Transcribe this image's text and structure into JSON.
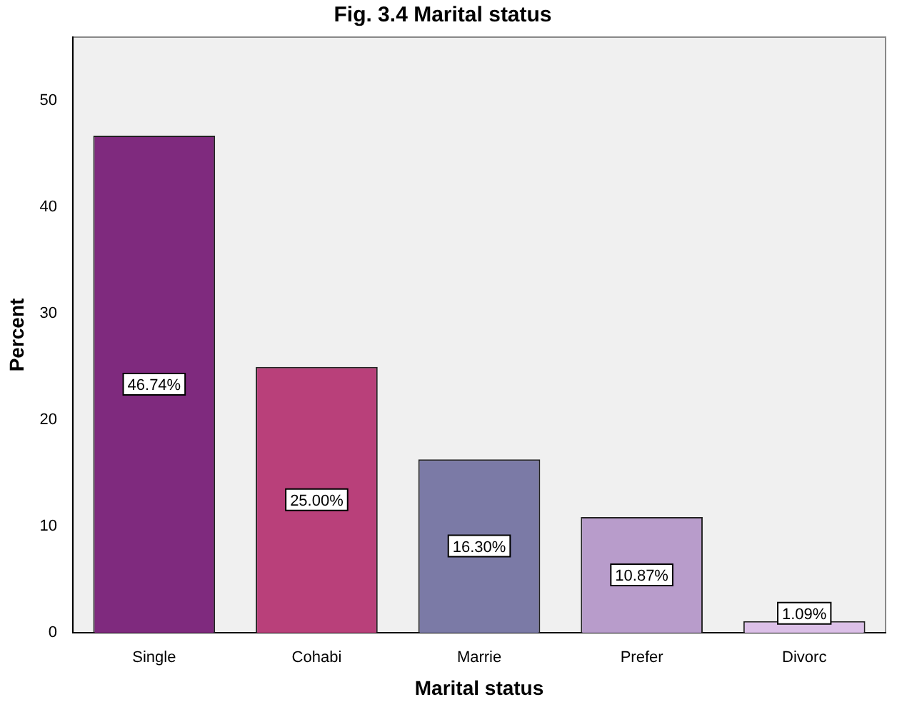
{
  "chart_data": {
    "type": "bar",
    "title": "Fig. 3.4 Marital status",
    "xlabel": "Marital status",
    "ylabel": "Percent",
    "categories": [
      "Single",
      "Cohabi",
      "Marrie",
      "Prefer",
      "Divorc"
    ],
    "values": [
      46.74,
      25.0,
      16.3,
      10.87,
      1.09
    ],
    "value_labels": [
      "46.74%",
      "25.00%",
      "16.30%",
      "10.87%",
      "1.09%"
    ],
    "colors": [
      "#7f2a7e",
      "#b9407a",
      "#7b7aa6",
      "#b89ccb",
      "#dcc0e8"
    ],
    "ylim": [
      0,
      56
    ],
    "yticks": [
      0,
      10,
      20,
      30,
      40,
      50
    ],
    "grid": false,
    "legend": false
  }
}
